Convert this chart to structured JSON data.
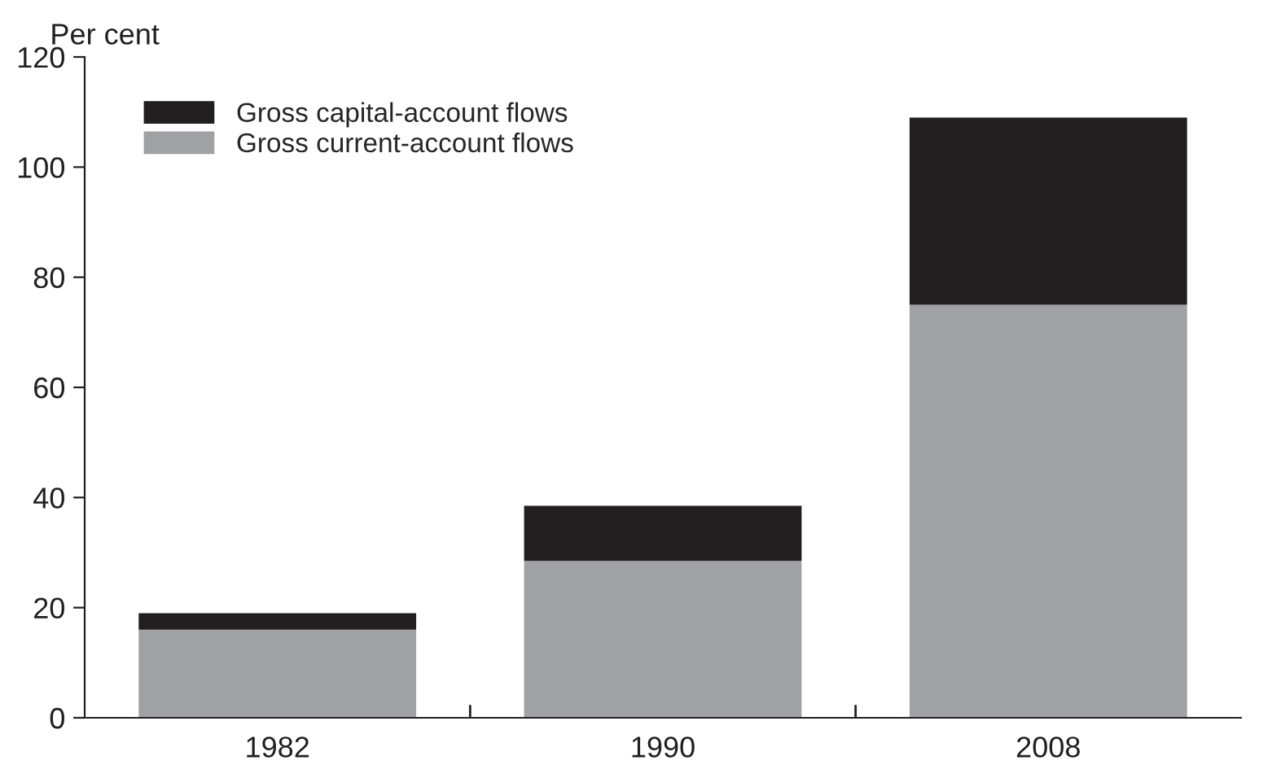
{
  "chart_data": {
    "type": "bar",
    "stacked": true,
    "ylabel": "Per cent",
    "categories": [
      "1982",
      "1990",
      "2008"
    ],
    "series": [
      {
        "name": "Gross current-account flows",
        "color": "#a0a1a4",
        "values": [
          16,
          28.5,
          75
        ]
      },
      {
        "name": "Gross capital-account flows",
        "color": "#231f20",
        "values": [
          3,
          10,
          34
        ]
      }
    ],
    "ylim": [
      0,
      120
    ],
    "yticks": [
      0,
      20,
      40,
      60,
      80,
      100,
      120
    ],
    "grid": false,
    "legend": "top left"
  }
}
